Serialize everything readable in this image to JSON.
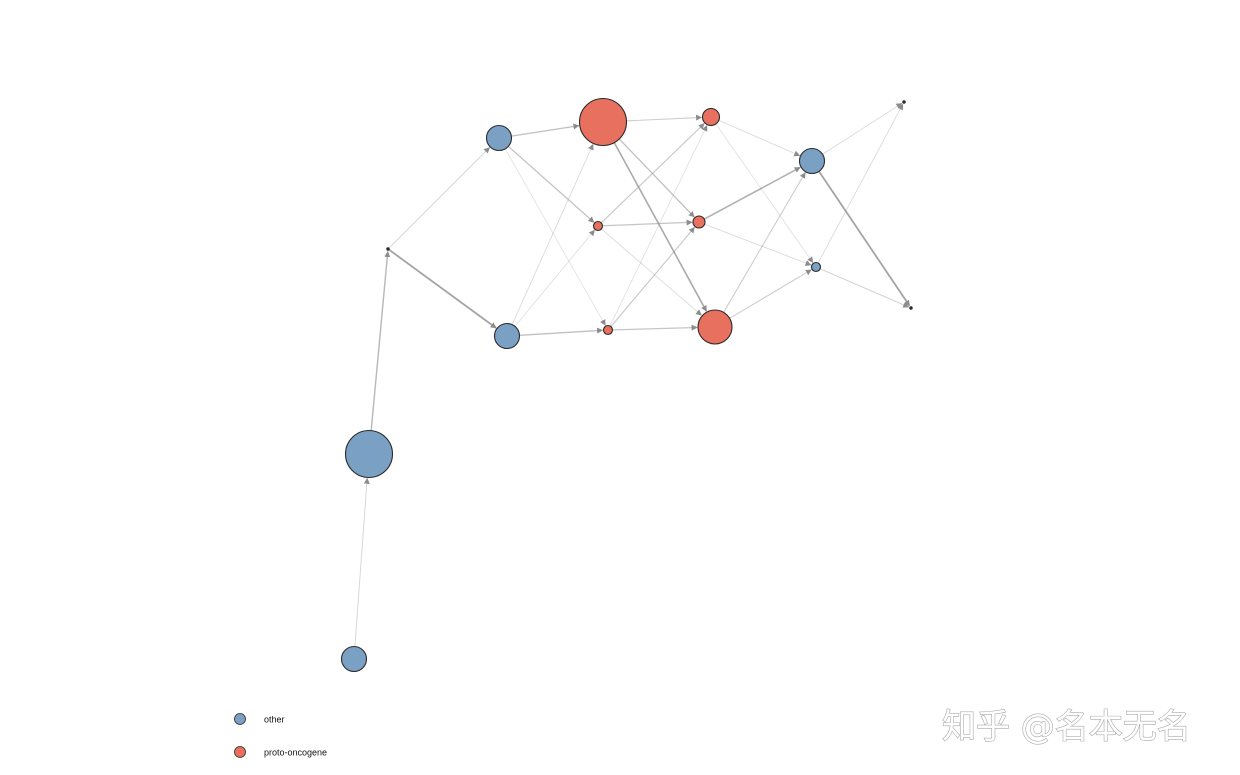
{
  "diagram": {
    "type": "directed-network",
    "categories": [
      {
        "key": "other",
        "label": "other",
        "color": "#7aa0c4"
      },
      {
        "key": "proto",
        "label": "proto-oncogene",
        "color": "#e8705f"
      }
    ],
    "stroke_color": "#2a2a2a",
    "edge_color": "#8c8c8c",
    "nodes": [
      {
        "id": "n1",
        "category": "other",
        "weight": 3
      },
      {
        "id": "n2",
        "category": "other",
        "weight": 5
      },
      {
        "id": "n3",
        "category": "other",
        "weight": 0
      },
      {
        "id": "n4",
        "category": "other",
        "weight": 3
      },
      {
        "id": "n5",
        "category": "other",
        "weight": 3
      },
      {
        "id": "n6",
        "category": "proto",
        "weight": 5
      },
      {
        "id": "n7",
        "category": "proto",
        "weight": 1
      },
      {
        "id": "n8",
        "category": "proto",
        "weight": 1
      },
      {
        "id": "n9",
        "category": "proto",
        "weight": 2
      },
      {
        "id": "n10",
        "category": "proto",
        "weight": 1.5
      },
      {
        "id": "n11",
        "category": "proto",
        "weight": 3.5
      },
      {
        "id": "n12",
        "category": "other",
        "weight": 3
      },
      {
        "id": "n13",
        "category": "other",
        "weight": 1
      },
      {
        "id": "n14",
        "category": "other",
        "weight": 0
      },
      {
        "id": "n15",
        "category": "other",
        "weight": 0
      }
    ],
    "edges": [
      {
        "from": "n1",
        "to": "n2",
        "strength": 0.25
      },
      {
        "from": "n2",
        "to": "n3",
        "strength": 0.6
      },
      {
        "from": "n3",
        "to": "n4",
        "strength": 0.25
      },
      {
        "from": "n3",
        "to": "n5",
        "strength": 0.85
      },
      {
        "from": "n4",
        "to": "n6",
        "strength": 0.5
      },
      {
        "from": "n4",
        "to": "n7",
        "strength": 0.5
      },
      {
        "from": "n4",
        "to": "n8",
        "strength": 0.12
      },
      {
        "from": "n5",
        "to": "n6",
        "strength": 0.2
      },
      {
        "from": "n5",
        "to": "n7",
        "strength": 0.15
      },
      {
        "from": "n5",
        "to": "n8",
        "strength": 0.5
      },
      {
        "from": "n6",
        "to": "n9",
        "strength": 0.35
      },
      {
        "from": "n6",
        "to": "n10",
        "strength": 0.5
      },
      {
        "from": "n6",
        "to": "n11",
        "strength": 0.75
      },
      {
        "from": "n7",
        "to": "n9",
        "strength": 0.4
      },
      {
        "from": "n7",
        "to": "n10",
        "strength": 0.45
      },
      {
        "from": "n7",
        "to": "n11",
        "strength": 0.2
      },
      {
        "from": "n8",
        "to": "n9",
        "strength": 0.15
      },
      {
        "from": "n8",
        "to": "n10",
        "strength": 0.4
      },
      {
        "from": "n8",
        "to": "n11",
        "strength": 0.45
      },
      {
        "from": "n9",
        "to": "n12",
        "strength": 0.2
      },
      {
        "from": "n9",
        "to": "n13",
        "strength": 0.15
      },
      {
        "from": "n10",
        "to": "n12",
        "strength": 0.7
      },
      {
        "from": "n10",
        "to": "n13",
        "strength": 0.2
      },
      {
        "from": "n11",
        "to": "n12",
        "strength": 0.35
      },
      {
        "from": "n11",
        "to": "n13",
        "strength": 0.35
      },
      {
        "from": "n12",
        "to": "n14",
        "strength": 0.2
      },
      {
        "from": "n12",
        "to": "n15",
        "strength": 0.85
      },
      {
        "from": "n13",
        "to": "n14",
        "strength": 0.2
      },
      {
        "from": "n13",
        "to": "n15",
        "strength": 0.3
      }
    ]
  },
  "legend": {
    "items": [
      {
        "key": "other",
        "label": "other"
      },
      {
        "key": "proto",
        "label": "proto-oncogene"
      }
    ]
  },
  "watermark": {
    "text": "知乎 @名本无名"
  }
}
